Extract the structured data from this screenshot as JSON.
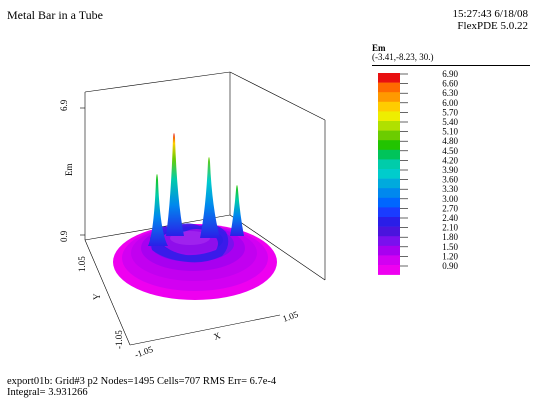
{
  "header": {
    "title": "Metal Bar in a Tube",
    "time": "15:27:43 6/18/08",
    "version": "FlexPDE 5.0.22"
  },
  "legend": {
    "variable": "Em",
    "view_point": "(-3.41,-8.23, 30.)",
    "values": [
      "6.90",
      "6.60",
      "6.30",
      "6.00",
      "5.70",
      "5.40",
      "5.10",
      "4.80",
      "4.50",
      "4.20",
      "3.90",
      "3.60",
      "3.30",
      "3.00",
      "2.70",
      "2.40",
      "2.10",
      "1.80",
      "1.50",
      "1.20",
      "0.90"
    ],
    "colors": [
      "#e81010",
      "#ff6a00",
      "#ff9900",
      "#ffcc00",
      "#eeee00",
      "#b0e000",
      "#6ccc00",
      "#22c400",
      "#00c45a",
      "#00ccaa",
      "#00cccc",
      "#00aadd",
      "#0088ee",
      "#0066ff",
      "#1a3cff",
      "#2a1ee8",
      "#4a14dd",
      "#7a10ee",
      "#a800f0",
      "#d200f2",
      "#ee00f0"
    ]
  },
  "axes": {
    "z_top": "6.9",
    "z_bottom": "0.9",
    "z_label": "Em",
    "y_label": "Y",
    "y_max": "1.05",
    "y_min": "-1.05",
    "x_label": "X",
    "x_min": "-1.05",
    "x_max": "1.05"
  },
  "footer": {
    "line1": "export01b:  Grid#3  p2  Nodes=1495 Cells=707 RMS Err= 6.7e-4",
    "line2": "Integral=  3.931266"
  }
}
